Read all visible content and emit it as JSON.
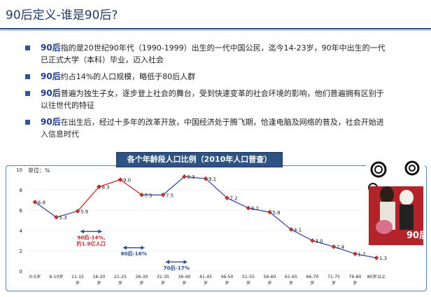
{
  "title": "90后定义-谁是90后?",
  "bullets": [
    {
      "keyword": "90后",
      "text": "指的是20世纪90年代（1990-1999）出生的一代中国公民，迄今14-23岁，90年中出生的一代已正式大学（本科）毕业，迈入社会"
    },
    {
      "keyword": "90后",
      "text": "约占14%的人口规模，略低于80后人群"
    },
    {
      "keyword": "90后",
      "text": "普遍为独生子女，逐步登上社会的舞台，受到快速变革的社会环境的影响，他们普遍拥有区别于以往世代的特征"
    },
    {
      "keyword": "90后",
      "text": "在出生后，经过十多年的改革开放，中国经济处于腾飞期，恰逢电脑及网络的普及，社会开始进入信息时代"
    }
  ],
  "chart_banner": "各个年龄段人口比例（2010年人口普查）",
  "photo_caption": "90后",
  "colors": {
    "line": "#2f3fa8",
    "highlight": "#cc2222",
    "arrow": "#2b4d90",
    "banner": "#2e5284"
  },
  "chart_data": {
    "type": "line",
    "unit_label": "单位：%",
    "ylim": [
      0,
      10
    ],
    "yticks": [
      0,
      2,
      4,
      6,
      8,
      10
    ],
    "categories": [
      "0-5岁",
      "6-10岁",
      "11-15岁",
      "16-20岁",
      "21-25岁",
      "26-30岁",
      "31-35岁",
      "36-40岁",
      "41-45岁",
      "46-50岁",
      "51-55岁",
      "56-60岁",
      "61-65岁",
      "66-70岁",
      "71-75岁",
      "76-80岁",
      "80岁以上"
    ],
    "values": [
      6.8,
      5.3,
      5.9,
      8.3,
      9.0,
      7.5,
      7.5,
      9.3,
      9.1,
      7.2,
      6.2,
      5.8,
      4.1,
      3.0,
      2.4,
      1.7,
      1.3
    ],
    "value_labels": [
      "6.8",
      "5.3",
      "5.9",
      "8.3",
      "9.0",
      "7.5",
      "7.5",
      "9.3",
      "9.1",
      "7.2",
      "6.2",
      "5.8",
      "4.1",
      "3.0",
      "2.4",
      "1.7",
      "1.3"
    ],
    "highlight_indices": [
      3,
      4
    ],
    "annotations": [
      {
        "text": "90后-14%,",
        "text2": "约1.9亿人口",
        "from": 2,
        "to": 3,
        "y": 3.9,
        "style": "red"
      },
      {
        "text": "80后-16%",
        "text2": "",
        "from": 4,
        "to": 5,
        "y": 2.3,
        "style": "blue"
      },
      {
        "text": "70后-17%",
        "text2": "",
        "from": 6,
        "to": 7,
        "y": 0.9,
        "style": "blue"
      }
    ]
  }
}
